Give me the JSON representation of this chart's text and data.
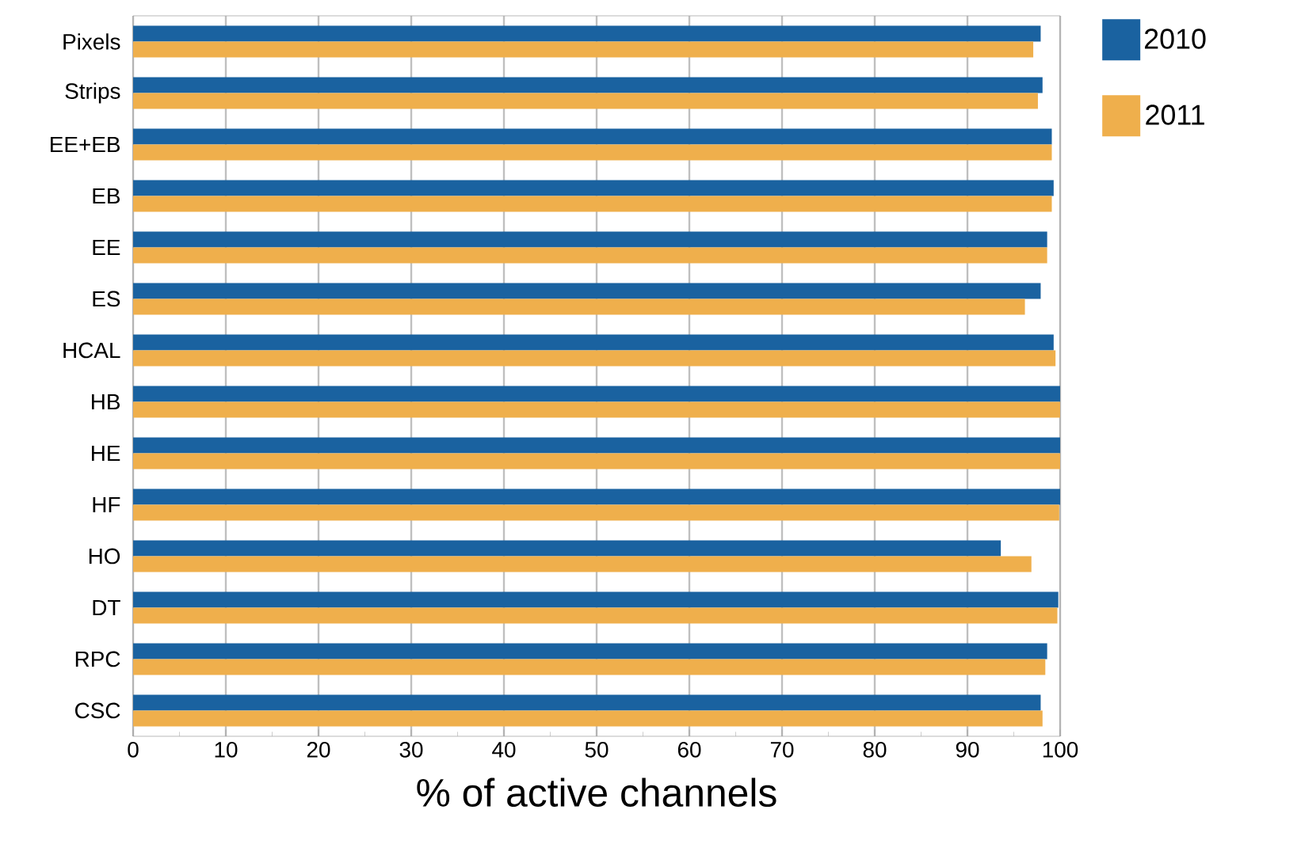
{
  "chart_data": {
    "type": "bar",
    "orientation": "horizontal",
    "xlabel": "% of active channels",
    "categories": [
      "Pixels",
      "Strips",
      "EE+EB",
      "EB",
      "EE",
      "ES",
      "HCAL",
      "HB",
      "HE",
      "HF",
      "HO",
      "DT",
      "RPC",
      "CSC"
    ],
    "series": [
      {
        "name": "2010",
        "color": "#1a62a0",
        "values": [
          97.9,
          98.1,
          99.1,
          99.3,
          98.6,
          97.9,
          99.3,
          100,
          100,
          100,
          93.6,
          99.8,
          98.6,
          97.9
        ]
      },
      {
        "name": "2011",
        "color": "#efaf4c",
        "values": [
          97.1,
          97.6,
          99.1,
          99.1,
          98.6,
          96.2,
          99.5,
          100,
          100,
          99.9,
          96.9,
          99.7,
          98.4,
          98.1
        ]
      }
    ],
    "xlim": [
      0,
      100
    ],
    "xticks": [
      0,
      10,
      20,
      30,
      40,
      50,
      60,
      70,
      80,
      90,
      100
    ],
    "grid": "x",
    "legend": "right"
  }
}
